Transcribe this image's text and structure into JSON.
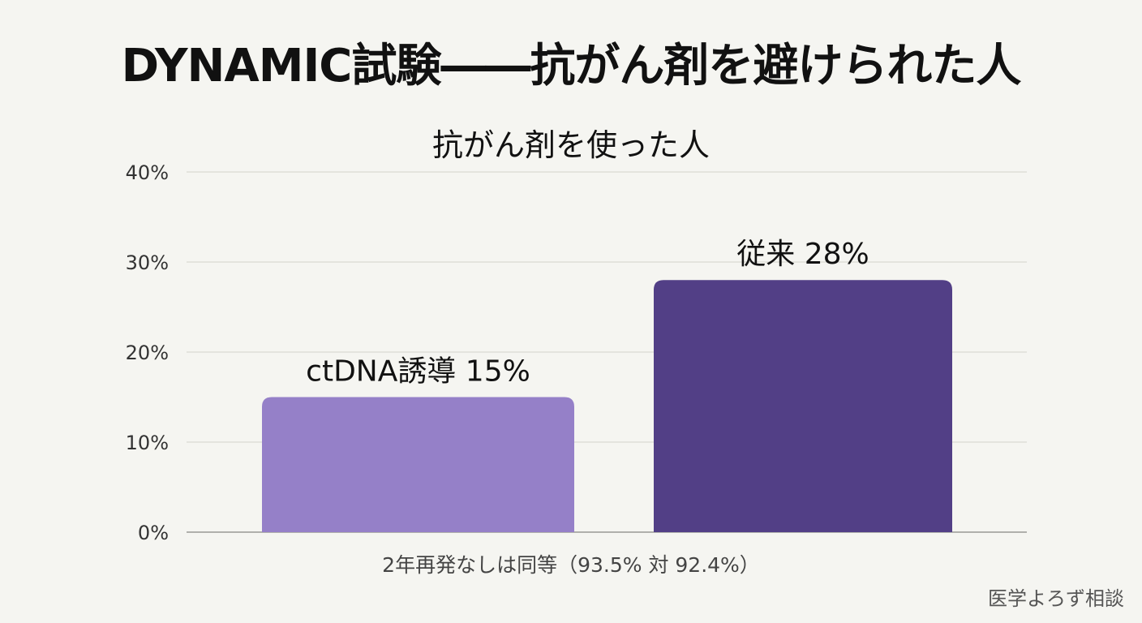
{
  "title": "DYNAMIC試験――抗がん剤を避けられた人",
  "subtitle": "抗がん剤を使った人",
  "footnote": "2年再発なしは同等（93.5% 対 92.4%）",
  "watermark": "医学よろず相談",
  "colors": {
    "background": "#f5f5f1",
    "bar_ctdna": "#9580c8",
    "bar_conventional": "#523f86",
    "gridline": "#d9d9d4"
  },
  "chart_data": {
    "type": "bar",
    "title": "抗がん剤を使った人",
    "categories": [
      "ctDNA誘導",
      "従来"
    ],
    "values": [
      15,
      28
    ],
    "data_labels": [
      "ctDNA誘導 15%",
      "従来 28%"
    ],
    "yticks": [
      "0%",
      "10%",
      "20%",
      "30%",
      "40%"
    ],
    "ylim": [
      0,
      40
    ],
    "ytick_step": 10,
    "xlabel": "",
    "ylabel": "",
    "grid": true,
    "legend": "none"
  }
}
